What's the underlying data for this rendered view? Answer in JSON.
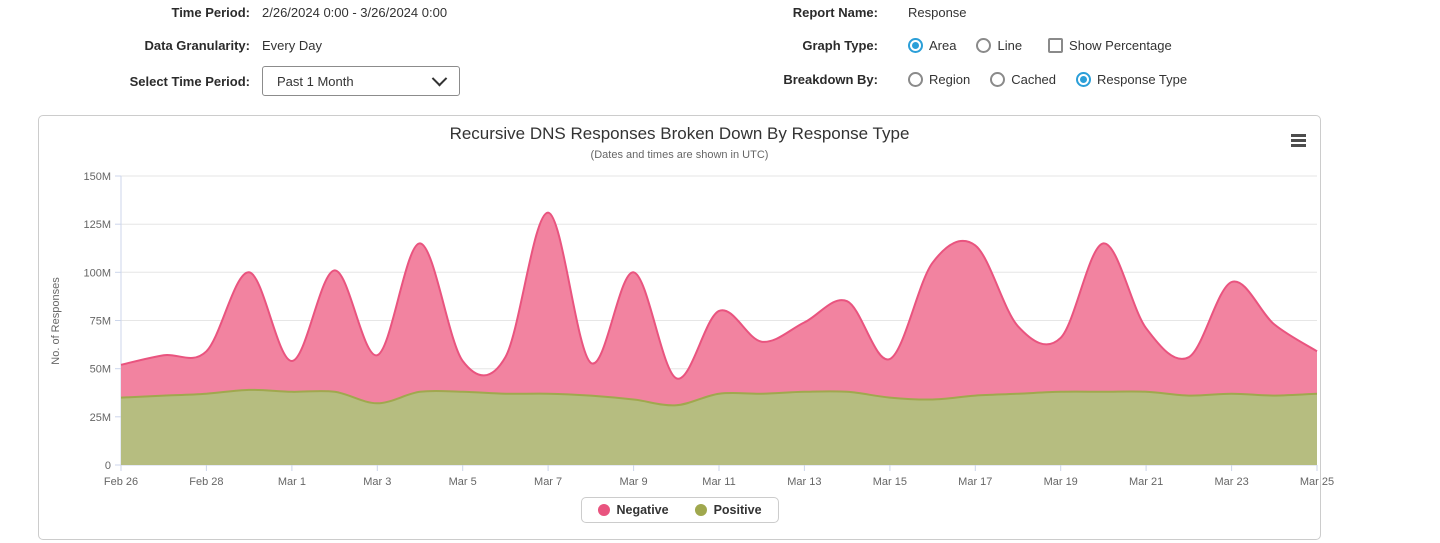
{
  "controls": {
    "left": {
      "time_period_label": "Time Period:",
      "time_period_value": "2/26/2024 0:00 - 3/26/2024 0:00",
      "granularity_label": "Data Granularity:",
      "granularity_value": "Every Day",
      "select_period_label": "Select Time Period:",
      "select_period_value": "Past 1 Month"
    },
    "right": {
      "report_name_label": "Report Name:",
      "report_name_value": "Response",
      "graph_type_label": "Graph Type:",
      "graph_type_options": [
        {
          "label": "Area",
          "selected": true
        },
        {
          "label": "Line",
          "selected": false
        }
      ],
      "show_percentage_label": "Show Percentage",
      "show_percentage_checked": false,
      "breakdown_label": "Breakdown By:",
      "breakdown_options": [
        {
          "label": "Region",
          "selected": false
        },
        {
          "label": "Cached",
          "selected": false
        },
        {
          "label": "Response Type",
          "selected": true
        }
      ]
    }
  },
  "icons": {
    "dropdown": "chevron-down",
    "context_menu": "hamburger-menu"
  },
  "colors": {
    "radio_selected": "#2b9fd8",
    "negative_line": "#e9547f",
    "negative_fill": "#f283a0",
    "positive_line": "#a0a84e",
    "positive_fill": "#b6bd80",
    "grid": "#e6e6e6",
    "axis": "#ccd6eb",
    "tick_text": "#666666"
  },
  "chart_data": {
    "type": "area",
    "title": "Recursive DNS Responses Broken Down By Response Type",
    "subtitle": "(Dates and times are shown in UTC)",
    "ylabel": "No. of Responses",
    "xlabel": "",
    "stacking": "none",
    "grid": "horizontal",
    "legend_position": "bottom-center",
    "values_unit": "millions of responses",
    "ylim": [
      0,
      150
    ],
    "y_tick_values": [
      0,
      25,
      50,
      75,
      100,
      125,
      150
    ],
    "y_tick_labels": [
      "0",
      "25M",
      "50M",
      "75M",
      "100M",
      "125M",
      "150M"
    ],
    "x": [
      "Feb 26",
      "Feb 27",
      "Feb 28",
      "Feb 29",
      "Mar 1",
      "Mar 2",
      "Mar 3",
      "Mar 4",
      "Mar 5",
      "Mar 6",
      "Mar 7",
      "Mar 8",
      "Mar 9",
      "Mar 10",
      "Mar 11",
      "Mar 12",
      "Mar 13",
      "Mar 14",
      "Mar 15",
      "Mar 16",
      "Mar 17",
      "Mar 18",
      "Mar 19",
      "Mar 20",
      "Mar 21",
      "Mar 22",
      "Mar 23",
      "Mar 24",
      "Mar 25"
    ],
    "x_tick_every": 2,
    "series": [
      {
        "name": "Negative",
        "color": "#e9547f",
        "fill": "#f283a0",
        "values": [
          52,
          57,
          59,
          100,
          54,
          101,
          57,
          115,
          54,
          56,
          131,
          53,
          100,
          45,
          80,
          64,
          74,
          85,
          55,
          105,
          114,
          72,
          66,
          115,
          71,
          56,
          95,
          73,
          59
        ]
      },
      {
        "name": "Positive",
        "color": "#a0a84e",
        "fill": "#b6bd80",
        "values": [
          35,
          36,
          37,
          39,
          38,
          38,
          32,
          38,
          38,
          37,
          37,
          36,
          34,
          31,
          37,
          37,
          38,
          38,
          35,
          34,
          36,
          37,
          38,
          38,
          38,
          36,
          37,
          36,
          37
        ]
      }
    ]
  }
}
